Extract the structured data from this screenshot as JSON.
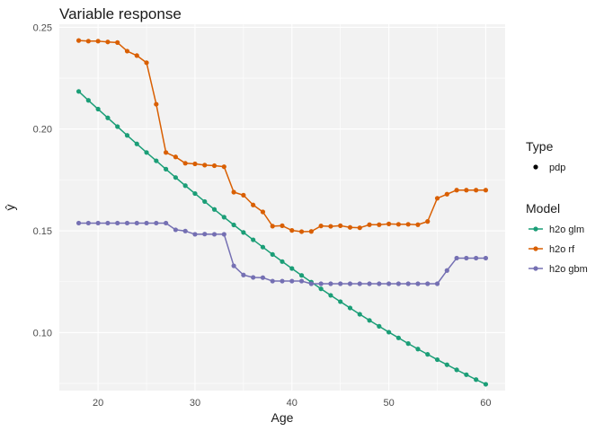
{
  "chart_data": {
    "type": "line",
    "title": "Variable response",
    "xlabel": "Age",
    "ylabel": "ŷ",
    "xlim": [
      16,
      62
    ],
    "ylim": [
      0.0715,
      0.2515
    ],
    "xticks": [
      20,
      30,
      40,
      50,
      60
    ],
    "yticks": [
      0.1,
      0.15,
      0.2,
      0.25
    ],
    "ytick_labels": [
      "0.10",
      "0.15",
      "0.20",
      "0.25"
    ],
    "grid": true,
    "background": "#f2f2f2",
    "legend_placement": "right",
    "legend": {
      "type_title": "Type",
      "type_entries": [
        "pdp"
      ],
      "model_title": "Model"
    },
    "x": [
      18,
      19,
      20,
      21,
      22,
      23,
      24,
      25,
      26,
      27,
      28,
      29,
      30,
      31,
      32,
      33,
      34,
      35,
      36,
      37,
      38,
      39,
      40,
      41,
      42,
      43,
      44,
      45,
      46,
      47,
      48,
      49,
      50,
      51,
      52,
      53,
      54,
      55,
      56,
      57,
      58,
      59,
      60
    ],
    "series": [
      {
        "name": "h2o glm",
        "color": "#1b9e77",
        "values": [
          0.2185,
          0.2141,
          0.2098,
          0.2055,
          0.2012,
          0.1969,
          0.1927,
          0.1885,
          0.1844,
          0.1803,
          0.1762,
          0.1722,
          0.1683,
          0.1644,
          0.1605,
          0.1567,
          0.1529,
          0.1492,
          0.1456,
          0.142,
          0.1384,
          0.1349,
          0.1315,
          0.1281,
          0.1248,
          0.1215,
          0.1183,
          0.1152,
          0.1121,
          0.109,
          0.106,
          0.1031,
          0.1002,
          0.0974,
          0.0946,
          0.0919,
          0.0893,
          0.0867,
          0.0842,
          0.0817,
          0.0793,
          0.0769,
          0.0746
        ]
      },
      {
        "name": "h2o rf",
        "color": "#d95f02",
        "values": [
          0.2435,
          0.2432,
          0.2432,
          0.2428,
          0.2425,
          0.2383,
          0.2361,
          0.2326,
          0.2122,
          0.1885,
          0.1863,
          0.1832,
          0.1829,
          0.1823,
          0.182,
          0.1815,
          0.169,
          0.1675,
          0.1627,
          0.1593,
          0.1523,
          0.1525,
          0.1502,
          0.1496,
          0.1497,
          0.1524,
          0.1522,
          0.1525,
          0.1517,
          0.1515,
          0.153,
          0.153,
          0.1534,
          0.1532,
          0.1532,
          0.153,
          0.1546,
          0.166,
          0.168,
          0.17,
          0.17,
          0.17,
          0.17
        ]
      },
      {
        "name": "h2o gbm",
        "color": "#7570b3",
        "values": [
          0.1538,
          0.1538,
          0.1538,
          0.1538,
          0.1538,
          0.1538,
          0.1538,
          0.1538,
          0.1538,
          0.1538,
          0.1505,
          0.1499,
          0.1483,
          0.1484,
          0.1483,
          0.1483,
          0.1328,
          0.1283,
          0.1271,
          0.127,
          0.1253,
          0.1253,
          0.1253,
          0.1253,
          0.124,
          0.124,
          0.124,
          0.124,
          0.124,
          0.124,
          0.124,
          0.124,
          0.124,
          0.124,
          0.124,
          0.124,
          0.124,
          0.124,
          0.1305,
          0.1366,
          0.1366,
          0.1366,
          0.1366
        ]
      }
    ]
  }
}
